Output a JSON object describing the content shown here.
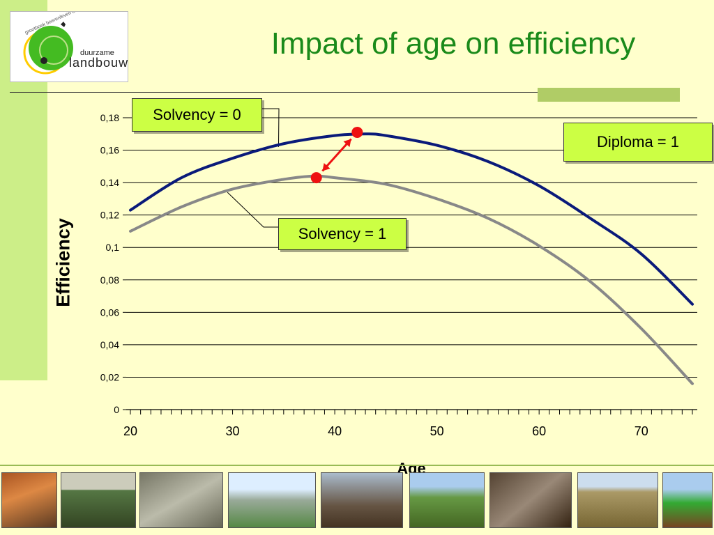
{
  "slide": {
    "title": "Impact of age on efficiency"
  },
  "logo": {
    "tagline": "grootboek boerenleven onderzoek",
    "word1": "duurzame",
    "word2": "landbouw",
    "colors": {
      "green": "#44bb22",
      "yellow": "#ffcc00",
      "ring": "#88cc44"
    }
  },
  "callouts": {
    "solvency0": "Solvency = 0",
    "solvency1": "Solvency = 1",
    "diploma": "Diploma = 1"
  },
  "colors": {
    "title": "#1a8a1a",
    "series_solvency0": "#0a1a7a",
    "series_solvency1": "#888888",
    "marker": "#ee1111",
    "callout_bg": "#ccff44"
  },
  "photo_strip": {
    "icons": [
      "chicken-photo",
      "field-photo",
      "pigs-photo",
      "greenhouse-photo",
      "barn-photo",
      "orchard-photo",
      "machinery-photo",
      "crop-field-photo",
      "tractor-photo"
    ]
  },
  "chart_data": {
    "type": "line",
    "xlabel": "Age",
    "ylabel": "Efficiency",
    "xlim": [
      20,
      75
    ],
    "ylim": [
      0,
      0.18
    ],
    "x_ticks": [
      20,
      30,
      40,
      50,
      60,
      70
    ],
    "x_tick_labels": [
      "20",
      "30",
      "40",
      "50",
      "60",
      "70"
    ],
    "y_ticks": [
      0,
      0.02,
      0.04,
      0.06,
      0.08,
      0.1,
      0.12,
      0.14,
      0.16,
      0.18
    ],
    "y_tick_labels": [
      "0",
      "0,02",
      "0,04",
      "0,06",
      "0,08",
      "0,1",
      "0,12",
      "0,14",
      "0,16",
      "0,18"
    ],
    "grid": true,
    "series": [
      {
        "name": "Solvency = 0",
        "x": [
          20,
          25,
          30,
          35,
          40,
          43,
          45,
          50,
          55,
          60,
          65,
          70,
          75
        ],
        "values": [
          0.123,
          0.143,
          0.155,
          0.164,
          0.169,
          0.17,
          0.169,
          0.163,
          0.153,
          0.138,
          0.118,
          0.096,
          0.065
        ]
      },
      {
        "name": "Solvency = 1",
        "x": [
          20,
          25,
          30,
          35,
          38,
          40,
          45,
          50,
          55,
          60,
          65,
          70,
          75
        ],
        "values": [
          0.11,
          0.125,
          0.136,
          0.142,
          0.144,
          0.143,
          0.139,
          0.13,
          0.118,
          0.101,
          0.079,
          0.05,
          0.016
        ]
      }
    ],
    "markers": [
      {
        "x": 42.2,
        "y": 0.171
      },
      {
        "x": 38.2,
        "y": 0.143
      }
    ]
  }
}
